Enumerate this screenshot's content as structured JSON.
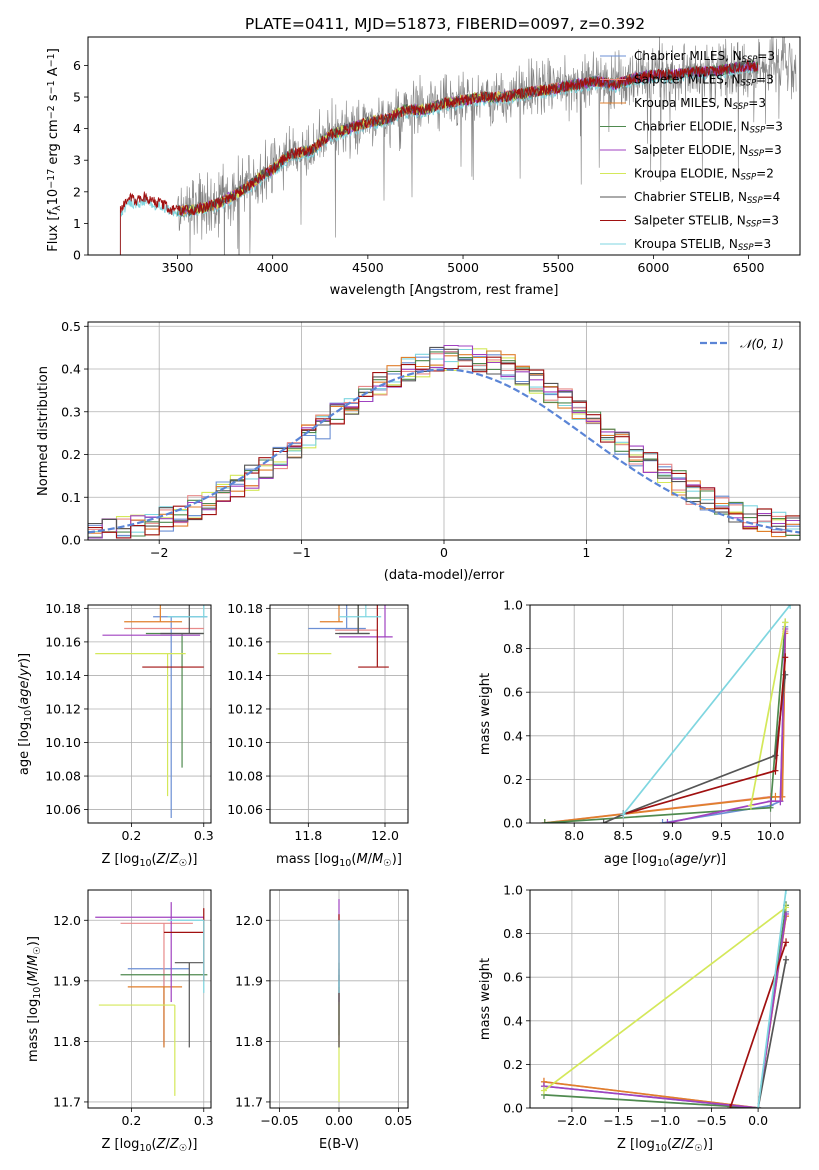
{
  "figure": {
    "title": "PLATE=0411, MJD=51873, FIBERID=0097, z=0.392"
  },
  "model_legend": [
    {
      "name": "Chabrier MILES",
      "n": "3",
      "color": "#6b8fd4"
    },
    {
      "name": "Salpeter MILES",
      "n": "3",
      "color": "#e88a8a"
    },
    {
      "name": "Kroupa MILES",
      "n": "3",
      "color": "#e07f2c"
    },
    {
      "name": "Chabrier ELODIE",
      "n": "3",
      "color": "#4f8a4f"
    },
    {
      "name": "Salpeter ELODIE",
      "n": "3",
      "color": "#a042c0"
    },
    {
      "name": "Kroupa ELODIE",
      "n": "2",
      "color": "#d4e85a"
    },
    {
      "name": "Chabrier STELIB",
      "n": "4",
      "color": "#555555"
    },
    {
      "name": "Salpeter STELIB",
      "n": "3",
      "color": "#a01010"
    },
    {
      "name": "Kroupa STELIB",
      "n": "3",
      "color": "#7fd6e0"
    }
  ],
  "chart_data": [
    {
      "id": "spectrum",
      "type": "line",
      "xlabel": "wavelength [Angstrom, rest frame]",
      "ylabel": "Flux [f_λ 10^-17 erg cm^-2 s^-1 A^-1]",
      "xlim": [
        3030,
        6770
      ],
      "ylim": [
        0,
        6.9
      ],
      "xticks": [
        3500,
        4000,
        4500,
        5000,
        5500,
        6000,
        6500
      ],
      "yticks": [
        0,
        1,
        2,
        3,
        4,
        5,
        6
      ],
      "data_color": "#808080",
      "data_range": [
        3500,
        6750
      ],
      "legend_suffix": "N_SSP=",
      "model_continuum": {
        "x": [
          3200,
          3250,
          3290,
          3330,
          3380,
          3430,
          3480,
          3530,
          3600,
          3700,
          3800,
          3900,
          3960,
          4000,
          4050,
          4100,
          4200,
          4300,
          4400,
          4500,
          4600,
          4700,
          4800,
          4900,
          5000,
          5100,
          5200,
          5300,
          5400,
          5500,
          5600,
          5700,
          5800,
          5900,
          6000,
          6100,
          6200,
          6300,
          6400,
          6500,
          6550
        ],
        "y": [
          1.45,
          1.8,
          1.7,
          1.85,
          1.7,
          1.6,
          1.4,
          1.4,
          1.45,
          1.6,
          1.9,
          2.3,
          2.6,
          2.7,
          3.0,
          3.2,
          3.3,
          3.8,
          4.0,
          4.2,
          4.3,
          4.6,
          4.6,
          4.8,
          4.9,
          5.0,
          5.0,
          5.1,
          5.2,
          5.3,
          5.4,
          5.5,
          5.4,
          5.6,
          5.7,
          5.7,
          5.8,
          5.8,
          5.9,
          6.0,
          5.95
        ]
      }
    },
    {
      "id": "residuals",
      "type": "area",
      "xlabel": "(data-model)/error",
      "ylabel": "Normed distribution",
      "xlim": [
        -2.5,
        2.5
      ],
      "ylim": [
        0,
        0.51
      ],
      "xticks": [
        -2,
        -1,
        0,
        1,
        2
      ],
      "yticks": [
        0.0,
        0.1,
        0.2,
        0.3,
        0.4,
        0.5
      ],
      "gaussian_label": "𝒩(0, 1)",
      "gaussian_color": "#5b85d6",
      "bin_width": 0.1
    },
    {
      "id": "age_vs_Z",
      "type": "scatter",
      "xlabel": "Z [log10(Z/Z☉)]",
      "ylabel": "age [log10(age/yr)]",
      "xlim": [
        0.14,
        0.31
      ],
      "ylim": [
        10.052,
        10.182
      ],
      "xticks": [
        0.2,
        0.3
      ],
      "yticks": [
        10.06,
        10.08,
        10.1,
        10.12,
        10.14,
        10.16,
        10.18
      ],
      "points": [
        {
          "x": 0.255,
          "y": 10.175,
          "xerr": [
            0.025,
            0.05
          ],
          "yerr": [
            0.12,
            0.0
          ],
          "c": 0
        },
        {
          "x": 0.25,
          "y": 10.168,
          "xerr": [
            0.06,
            0.05
          ],
          "yerr": [
            0.0,
            0.0
          ],
          "c": 1
        },
        {
          "x": 0.24,
          "y": 10.172,
          "xerr": [
            0.05,
            0.03
          ],
          "yerr": [
            0.0,
            0.09
          ],
          "c": 2
        },
        {
          "x": 0.27,
          "y": 10.165,
          "xerr": [
            0.05,
            0.03
          ],
          "yerr": [
            0.08,
            0.0
          ],
          "c": 3
        },
        {
          "x": 0.255,
          "y": 10.164,
          "xerr": [
            0.095,
            0.04
          ],
          "yerr": [
            0.0,
            0.0
          ],
          "c": 4
        },
        {
          "x": 0.25,
          "y": 10.153,
          "xerr": [
            0.1,
            0.025
          ],
          "yerr": [
            0.085,
            0.0
          ],
          "c": 5
        },
        {
          "x": 0.28,
          "y": 10.165,
          "xerr": [
            0.04,
            0.02
          ],
          "yerr": [
            0.0,
            0.09
          ],
          "c": 6
        },
        {
          "x": 0.265,
          "y": 10.145,
          "xerr": [
            0.05,
            0.035
          ],
          "yerr": [
            0.0,
            0.0
          ],
          "c": 7
        },
        {
          "x": 0.3,
          "y": 10.175,
          "xerr": [
            0.05,
            0.005
          ],
          "yerr": [
            0.0,
            0.08
          ],
          "c": 8
        }
      ]
    },
    {
      "id": "age_vs_mass",
      "type": "scatter",
      "xlabel": "mass [log10(M/M☉)]",
      "ylabel": "",
      "xlim": [
        11.7,
        12.06
      ],
      "ylim": [
        10.052,
        10.182
      ],
      "xticks": [
        11.8,
        12.0
      ],
      "yticks": [
        10.06,
        10.08,
        10.1,
        10.12,
        10.14,
        10.16,
        10.18
      ],
      "points": [
        {
          "x": 11.9,
          "y": 10.168,
          "xerr": [
            0.1,
            0.05
          ],
          "yerr": [
            0.0,
            0.115
          ],
          "c": 0
        },
        {
          "x": 11.93,
          "y": 10.167,
          "xerr": [
            0.06,
            0.05
          ],
          "yerr": [
            0.0,
            0.09
          ],
          "c": 1
        },
        {
          "x": 11.88,
          "y": 10.172,
          "xerr": [
            0.05,
            0.01
          ],
          "yerr": [
            0.0,
            0.09
          ],
          "c": 2
        },
        {
          "x": 11.93,
          "y": 10.165,
          "xerr": [
            0.05,
            0.03
          ],
          "yerr": [
            0.0,
            0.085
          ],
          "c": 3
        },
        {
          "x": 12.0,
          "y": 10.163,
          "xerr": [
            0.12,
            0.02
          ],
          "yerr": [
            0.0,
            0.045
          ],
          "c": 4
        },
        {
          "x": 11.86,
          "y": 10.153,
          "xerr": [
            0.14,
            0.0
          ],
          "yerr": [
            0.0,
            0.0
          ],
          "c": 5
        },
        {
          "x": 11.93,
          "y": 10.165,
          "xerr": [
            0.06,
            0.03
          ],
          "yerr": [
            0.0,
            0.085
          ],
          "c": 6
        },
        {
          "x": 11.98,
          "y": 10.145,
          "xerr": [
            0.05,
            0.03
          ],
          "yerr": [
            0.0,
            0.055
          ],
          "c": 7
        },
        {
          "x": 11.95,
          "y": 10.175,
          "xerr": [
            0.07,
            0.04
          ],
          "yerr": [
            0.0,
            0.08
          ],
          "c": 8
        }
      ]
    },
    {
      "id": "mass_weight_vs_age",
      "type": "line",
      "xlabel": "age [log10(age/yr)]",
      "ylabel": "mass weight",
      "xlim": [
        7.55,
        10.3
      ],
      "ylim": [
        0,
        1.0
      ],
      "xticks": [
        8.0,
        8.5,
        9.0,
        9.5,
        10.0
      ],
      "yticks": [
        0.0,
        0.2,
        0.4,
        0.6,
        0.8,
        1.0
      ],
      "series": [
        {
          "c": 0,
          "x": [
            8.9,
            10.0,
            10.1,
            10.15
          ],
          "y": [
            0.0,
            0.08,
            0.1,
            0.9
          ]
        },
        {
          "c": 1,
          "x": [
            7.7,
            10.0,
            10.12,
            10.15
          ],
          "y": [
            0.0,
            0.12,
            0.12,
            0.88
          ]
        },
        {
          "c": 2,
          "x": [
            7.7,
            10.05,
            10.12,
            10.15
          ],
          "y": [
            0.0,
            0.12,
            0.12,
            0.87
          ]
        },
        {
          "c": 3,
          "x": [
            7.7,
            10.0,
            10.15
          ],
          "y": [
            0.0,
            0.07,
            0.92
          ]
        },
        {
          "c": 4,
          "x": [
            8.95,
            10.0,
            10.1,
            10.15
          ],
          "y": [
            0.0,
            0.1,
            0.1,
            0.89
          ]
        },
        {
          "c": 5,
          "x": [
            9.8,
            10.15
          ],
          "y": [
            0.08,
            0.92
          ]
        },
        {
          "c": 6,
          "x": [
            8.3,
            8.5,
            10.05,
            10.15
          ],
          "y": [
            0.0,
            0.04,
            0.31,
            0.68
          ]
        },
        {
          "c": 7,
          "x": [
            8.5,
            10.05,
            10.15
          ],
          "y": [
            0.04,
            0.24,
            0.76
          ]
        },
        {
          "c": 8,
          "x": [
            8.5,
            10.2
          ],
          "y": [
            0.04,
            1.0
          ]
        }
      ]
    },
    {
      "id": "mass_vs_Z",
      "type": "scatter",
      "xlabel": "Z [log10(Z/Z☉)]",
      "ylabel": "mass [log10(M/M☉)]",
      "xlim": [
        0.14,
        0.31
      ],
      "ylim": [
        11.69,
        12.05
      ],
      "xticks": [
        0.2,
        0.3
      ],
      "yticks": [
        11.7,
        11.8,
        11.9,
        12.0
      ],
      "points": [
        {
          "x": 0.245,
          "y": 11.92,
          "xerr": [
            0.05,
            0.035
          ],
          "yerr": [
            0.13,
            0.0
          ],
          "c": 0
        },
        {
          "x": 0.245,
          "y": 11.995,
          "xerr": [
            0.06,
            0.04
          ],
          "yerr": [
            0.2,
            0.0
          ],
          "c": 1
        },
        {
          "x": 0.245,
          "y": 11.89,
          "xerr": [
            0.05,
            0.025
          ],
          "yerr": [
            0.1,
            0.0
          ],
          "c": 2
        },
        {
          "x": 0.265,
          "y": 11.91,
          "xerr": [
            0.08,
            0.04
          ],
          "yerr": [
            0.0,
            0.0
          ],
          "c": 3
        },
        {
          "x": 0.255,
          "y": 12.005,
          "xerr": [
            0.105,
            0.045
          ],
          "yerr": [
            0.14,
            0.025
          ],
          "c": 4
        },
        {
          "x": 0.26,
          "y": 11.86,
          "xerr": [
            0.105,
            0.0
          ],
          "yerr": [
            0.15,
            0.0
          ],
          "c": 5
        },
        {
          "x": 0.28,
          "y": 11.93,
          "xerr": [
            0.02,
            0.02
          ],
          "yerr": [
            0.14,
            0.0
          ],
          "c": 6
        },
        {
          "x": 0.3,
          "y": 11.98,
          "xerr": [
            0.055,
            0.0
          ],
          "yerr": [
            0.08,
            0.04
          ],
          "c": 7
        },
        {
          "x": 0.3,
          "y": 12.0,
          "xerr": [
            0.05,
            0.0
          ],
          "yerr": [
            0.12,
            0.0
          ],
          "c": 8
        }
      ]
    },
    {
      "id": "mass_vs_EBV",
      "type": "scatter",
      "xlabel": "E(B-V)",
      "ylabel": "",
      "xlim": [
        -0.058,
        0.058
      ],
      "ylim": [
        11.69,
        12.05
      ],
      "xticks": [
        -0.05,
        0.0,
        0.05
      ],
      "yticks": [
        11.7,
        11.8,
        11.9,
        12.0
      ],
      "points": [
        {
          "x": 0.0,
          "y": 11.92,
          "xerr": [
            0.0,
            0.0
          ],
          "yerr": [
            0.13,
            0.0
          ],
          "c": 0
        },
        {
          "x": 0.0,
          "y": 11.995,
          "xerr": [
            0.0,
            0.0
          ],
          "yerr": [
            0.2,
            0.0
          ],
          "c": 1
        },
        {
          "x": 0.0,
          "y": 11.89,
          "xerr": [
            0.0,
            0.0
          ],
          "yerr": [
            0.1,
            0.0
          ],
          "c": 2
        },
        {
          "x": 0.0,
          "y": 11.91,
          "xerr": [
            0.0,
            0.0
          ],
          "yerr": [
            0.1,
            0.0
          ],
          "c": 3
        },
        {
          "x": 0.0,
          "y": 12.005,
          "xerr": [
            0.0,
            0.0
          ],
          "yerr": [
            0.14,
            0.03
          ],
          "c": 4
        },
        {
          "x": 0.0,
          "y": 11.86,
          "xerr": [
            0.0,
            0.0
          ],
          "yerr": [
            0.16,
            0.0
          ],
          "c": 5
        },
        {
          "x": 0.0,
          "y": 11.93,
          "xerr": [
            0.0,
            0.0
          ],
          "yerr": [
            0.14,
            0.0
          ],
          "c": 6
        },
        {
          "x": 0.0,
          "y": 11.98,
          "xerr": [
            0.0,
            0.0
          ],
          "yerr": [
            0.08,
            0.03
          ],
          "c": 7
        },
        {
          "x": 0.0,
          "y": 12.0,
          "xerr": [
            0.0,
            0.0
          ],
          "yerr": [
            0.12,
            0.0
          ],
          "c": 8
        }
      ]
    },
    {
      "id": "mass_weight_vs_Z",
      "type": "line",
      "xlabel": "Z [log10(Z/Z☉)]",
      "ylabel": "mass weight",
      "xlim": [
        -2.45,
        0.45
      ],
      "ylim": [
        0,
        1.0
      ],
      "xticks": [
        -2.0,
        -1.5,
        -1.0,
        -0.5,
        0.0
      ],
      "yticks": [
        0.0,
        0.2,
        0.4,
        0.6,
        0.8,
        1.0
      ],
      "series": [
        {
          "c": 0,
          "x": [
            -2.3,
            0.0,
            0.3
          ],
          "y": [
            0.1,
            0.0,
            0.9
          ]
        },
        {
          "c": 1,
          "x": [
            -2.3,
            0.0,
            0.3
          ],
          "y": [
            0.12,
            0.0,
            0.88
          ]
        },
        {
          "c": 2,
          "x": [
            -2.3,
            0.0,
            0.3
          ],
          "y": [
            0.12,
            0.0,
            0.88
          ]
        },
        {
          "c": 3,
          "x": [
            -2.3,
            0.0,
            0.3
          ],
          "y": [
            0.06,
            0.0,
            0.93
          ]
        },
        {
          "c": 4,
          "x": [
            -2.3,
            0.0,
            0.3
          ],
          "y": [
            0.1,
            0.0,
            0.89
          ]
        },
        {
          "c": 5,
          "x": [
            -2.3,
            0.3
          ],
          "y": [
            0.08,
            0.92
          ]
        },
        {
          "c": 6,
          "x": [
            -0.3,
            0.0,
            0.3
          ],
          "y": [
            0.0,
            0.0,
            0.68
          ]
        },
        {
          "c": 7,
          "x": [
            -0.3,
            0.3
          ],
          "y": [
            0.0,
            0.76
          ]
        },
        {
          "c": 8,
          "x": [
            0.0,
            0.3
          ],
          "y": [
            0.0,
            1.0
          ]
        }
      ]
    }
  ]
}
